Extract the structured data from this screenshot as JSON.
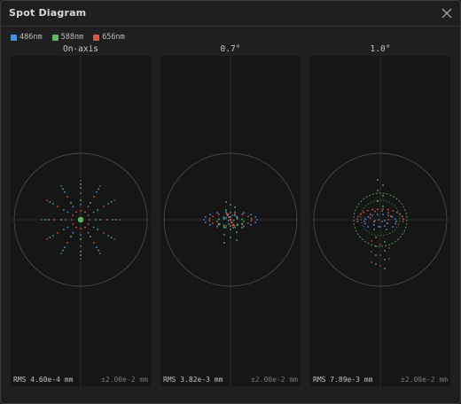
{
  "window": {
    "title": "Spot Diagram",
    "close_icon": "close-icon"
  },
  "legend": [
    {
      "label": "486nm",
      "color": "#4a90d9"
    },
    {
      "label": "588nm",
      "color": "#5cb85c"
    },
    {
      "label": "656nm",
      "color": "#d9534f"
    }
  ],
  "fields": [
    {
      "label": "On-axis",
      "rms": "RMS 4.60e-4 mm",
      "scale": "±2.00e-2 mm"
    },
    {
      "label": "0.7°",
      "rms": "RMS 3.82e-3 mm",
      "scale": "±2.00e-2 mm"
    },
    {
      "label": "1.0°",
      "rms": "RMS 7.89e-3 mm",
      "scale": "±2.00e-2 mm"
    }
  ],
  "colors": {
    "window_bg": "#1f1f1f",
    "panel_bg": "#161616",
    "grid": "#3a3a3a",
    "circle": "#4a4a4a"
  }
}
